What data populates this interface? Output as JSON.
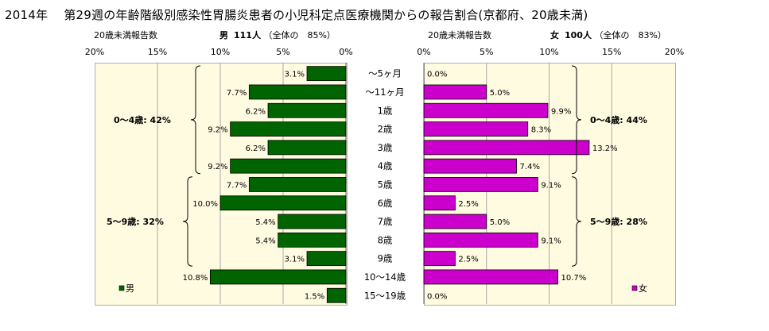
{
  "title": "2014年　 第29週の年齢階級別感染性胃腸炎患者の小児科定点医療機関からの報告割合(京都府、20歳未満)",
  "left_header": {
    "report_label": "20歳未満報告数",
    "sex": "男",
    "count": "111人",
    "share": "（全体の　85%）"
  },
  "right_header": {
    "report_label": "20歳未満報告数",
    "sex": "女",
    "count": "100人",
    "share": "（全体の　83%）"
  },
  "chart_data": [
    {
      "type": "bar",
      "orientation": "horizontal",
      "direction": "right-to-left",
      "categories": [
        "～5ヶ月",
        "～11ヶ月",
        "1歳",
        "2歳",
        "3歳",
        "4歳",
        "5歳",
        "6歳",
        "7歳",
        "8歳",
        "9歳",
        "10～14歳",
        "15～19歳"
      ],
      "series": [
        {
          "name": "男",
          "values": [
            3.1,
            7.7,
            6.2,
            9.2,
            6.2,
            9.2,
            7.7,
            10.0,
            5.4,
            5.4,
            3.1,
            10.8,
            1.5
          ],
          "color": "#006400"
        }
      ],
      "data_labels": [
        "3.1%",
        "7.7%",
        "6.2%",
        "9.2%",
        "6.2%",
        "9.2%",
        "7.7%",
        "10.0%",
        "5.4%",
        "5.4%",
        "3.1%",
        "10.8%",
        "1.5%"
      ],
      "xlim": [
        0,
        20
      ],
      "xticks": [
        "20%",
        "15%",
        "10%",
        "5%",
        "0%"
      ],
      "groups": [
        {
          "label": "0～4歳: 42%",
          "from": 0,
          "to": 5
        },
        {
          "label": "5～9歳: 32%",
          "from": 6,
          "to": 10
        }
      ],
      "legend": "bottom-left"
    },
    {
      "type": "bar",
      "orientation": "horizontal",
      "direction": "left-to-right",
      "categories": [
        "～5ヶ月",
        "～11ヶ月",
        "1歳",
        "2歳",
        "3歳",
        "4歳",
        "5歳",
        "6歳",
        "7歳",
        "8歳",
        "9歳",
        "10～14歳",
        "15～19歳"
      ],
      "series": [
        {
          "name": "女",
          "values": [
            0.0,
            5.0,
            9.9,
            8.3,
            13.2,
            7.4,
            9.1,
            2.5,
            5.0,
            9.1,
            2.5,
            10.7,
            0.0
          ],
          "color": "#cc00cc"
        }
      ],
      "data_labels": [
        "0.0%",
        "5.0%",
        "9.9%",
        "8.3%",
        "13.2%",
        "7.4%",
        "9.1%",
        "2.5%",
        "5.0%",
        "9.1%",
        "2.5%",
        "10.7%",
        "0.0%"
      ],
      "xlim": [
        0,
        20
      ],
      "xticks": [
        "0%",
        "5%",
        "10%",
        "15%",
        "20%"
      ],
      "groups": [
        {
          "label": "0～4歳: 44%",
          "from": 0,
          "to": 5
        },
        {
          "label": "5～9歳: 28%",
          "from": 6,
          "to": 10
        }
      ],
      "legend": "bottom-right"
    }
  ]
}
